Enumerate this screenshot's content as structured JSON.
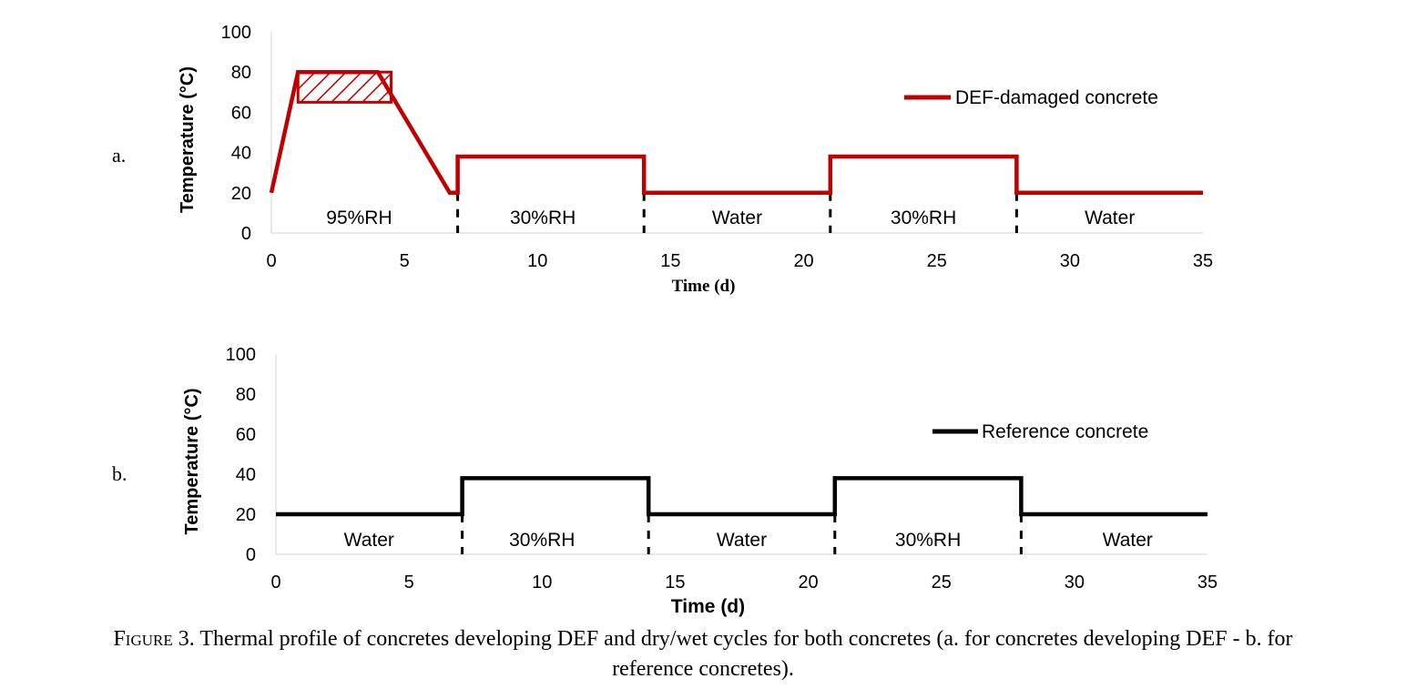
{
  "figure": {
    "caption_label": "Figure 3.",
    "caption_text": "Thermal profile of concretes developing DEF and dry/wet cycles for both concretes (a. for concretes developing DEF - b. for",
    "caption_text_line2": "reference concretes).",
    "colors": {
      "def_series": "#c00000",
      "reference_series": "#000000",
      "axis": "#000000"
    }
  },
  "panels": [
    {
      "letter": "a."
    },
    {
      "letter": "b."
    }
  ],
  "chart_data": [
    {
      "type": "line",
      "title": "",
      "xlabel": "Time (d)",
      "ylabel": "Temperature (°C)",
      "xlim": [
        0,
        35
      ],
      "ylim": [
        0,
        100
      ],
      "xticks": [
        "0",
        "5",
        "10",
        "15",
        "20",
        "25",
        "30",
        "35"
      ],
      "yticks": [
        "0",
        "20",
        "40",
        "60",
        "80",
        "100"
      ],
      "legend_position": "top-right",
      "grid": false,
      "series": [
        {
          "name": "DEF-damaged concrete",
          "color": "#c00000",
          "x": [
            0,
            1,
            4,
            6.7,
            7,
            7,
            14,
            14,
            21,
            21,
            28,
            28,
            35
          ],
          "y": [
            20,
            80,
            80,
            20,
            20,
            38,
            38,
            20,
            20,
            38,
            38,
            20,
            20
          ]
        }
      ],
      "hatched_band": {
        "x": [
          1,
          4.5
        ],
        "y": [
          65,
          80
        ],
        "color": "#c00000"
      },
      "phase_boundaries": [
        7,
        14,
        21,
        28
      ],
      "phase_labels": [
        {
          "text": "95%RH",
          "x": 3.3
        },
        {
          "text": "30%RH",
          "x": 10.2
        },
        {
          "text": "Water",
          "x": 17.5
        },
        {
          "text": "30%RH",
          "x": 24.5
        },
        {
          "text": "Water",
          "x": 31.5
        }
      ]
    },
    {
      "type": "line",
      "title": "",
      "xlabel": "Time  (d)",
      "ylabel": "Temperature (°C)",
      "xlim": [
        0,
        35
      ],
      "ylim": [
        0,
        100
      ],
      "xticks": [
        "0",
        "5",
        "10",
        "15",
        "20",
        "25",
        "30",
        "35"
      ],
      "yticks": [
        "0",
        "20",
        "40",
        "60",
        "80",
        "100"
      ],
      "legend_position": "top-right",
      "grid": false,
      "series": [
        {
          "name": "Reference concrete",
          "color": "#000000",
          "x": [
            0,
            7,
            7,
            14,
            14,
            21,
            21,
            28,
            28,
            35
          ],
          "y": [
            20,
            20,
            38,
            38,
            20,
            20,
            38,
            38,
            20,
            20
          ]
        }
      ],
      "phase_boundaries": [
        7,
        14,
        21,
        28
      ],
      "phase_labels": [
        {
          "text": "Water",
          "x": 3.5
        },
        {
          "text": "30%RH",
          "x": 10.0
        },
        {
          "text": "Water",
          "x": 17.5
        },
        {
          "text": "30%RH",
          "x": 24.5
        },
        {
          "text": "Water",
          "x": 32.0
        }
      ]
    }
  ]
}
